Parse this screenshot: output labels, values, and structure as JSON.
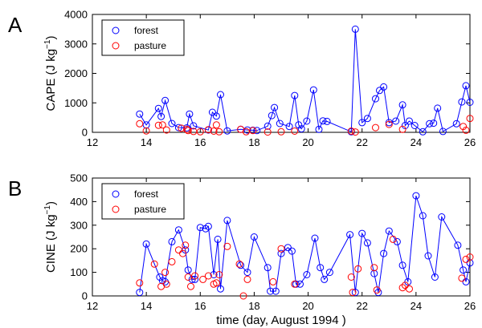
{
  "chart_data": [
    {
      "type": "line",
      "panel_label": "A",
      "ylabel": "CAPE (J kg",
      "ylabel_exp": "−1",
      "ylabel_close": ")",
      "xlim": [
        12,
        26
      ],
      "ylim": [
        0,
        4000
      ],
      "xticks": [
        12,
        14,
        16,
        18,
        20,
        22,
        24,
        26
      ],
      "yticks": [
        0,
        1000,
        2000,
        3000,
        4000
      ],
      "legend_position": "top-left",
      "series": [
        {
          "name": "forest",
          "color": "#0000ff",
          "line": true,
          "x": [
            13.75,
            14.0,
            14.45,
            14.55,
            14.7,
            14.95,
            15.2,
            15.5,
            15.6,
            15.75,
            16.3,
            16.45,
            16.6,
            16.75,
            17.0,
            17.5,
            17.75,
            17.95,
            18.1,
            18.5,
            18.65,
            18.75,
            18.95,
            19.3,
            19.5,
            19.65,
            19.75,
            19.95,
            20.2,
            20.4,
            20.55,
            20.7,
            21.6,
            21.75,
            22.0,
            22.2,
            22.5,
            22.65,
            22.8,
            23.0,
            23.25,
            23.5,
            23.6,
            23.75,
            23.95,
            24.25,
            24.5,
            24.65,
            24.8,
            25.0,
            25.5,
            25.7,
            25.85,
            26.0
          ],
          "y": [
            620,
            250,
            810,
            540,
            1080,
            300,
            160,
            150,
            620,
            220,
            80,
            680,
            550,
            1280,
            50,
            100,
            80,
            70,
            60,
            210,
            570,
            840,
            300,
            200,
            1250,
            250,
            120,
            380,
            1440,
            100,
            390,
            370,
            20,
            3500,
            330,
            470,
            1140,
            1420,
            1540,
            330,
            380,
            930,
            230,
            380,
            230,
            20,
            290,
            310,
            820,
            30,
            290,
            1030,
            1580,
            1020
          ]
        },
        {
          "name": "pasture",
          "color": "#ff0000",
          "line": false,
          "x": [
            13.75,
            14.0,
            14.45,
            14.6,
            14.75,
            15.3,
            15.5,
            15.55,
            15.75,
            16.0,
            16.3,
            16.5,
            16.6,
            16.7,
            17.5,
            17.7,
            17.95,
            18.5,
            19.0,
            19.5,
            21.6,
            21.75,
            22.5,
            23.0,
            23.5,
            25.75,
            25.85,
            26.0
          ],
          "y": [
            290,
            50,
            240,
            250,
            80,
            140,
            100,
            60,
            30,
            20,
            90,
            40,
            250,
            20,
            100,
            20,
            60,
            10,
            20,
            40,
            40,
            10,
            160,
            270,
            100,
            200,
            70,
            470
          ]
        }
      ]
    },
    {
      "type": "line",
      "panel_label": "B",
      "ylabel": "CINE (J kg",
      "ylabel_exp": "−1",
      "ylabel_close": ")",
      "xlabel": "time (day, August 1994 )",
      "xlim": [
        12,
        26
      ],
      "ylim": [
        0,
        500
      ],
      "xticks": [
        12,
        14,
        16,
        18,
        20,
        22,
        24,
        26
      ],
      "yticks": [
        0,
        100,
        200,
        300,
        400,
        500
      ],
      "legend_position": "top-left",
      "series": [
        {
          "name": "forest",
          "color": "#0000ff",
          "line": true,
          "x": [
            13.75,
            14.0,
            14.5,
            14.6,
            14.7,
            14.95,
            15.2,
            15.45,
            15.55,
            15.7,
            15.8,
            16.0,
            16.2,
            16.3,
            16.5,
            16.65,
            16.75,
            17.0,
            17.5,
            17.75,
            18.0,
            18.5,
            18.6,
            18.8,
            19.0,
            19.25,
            19.4,
            19.55,
            19.7,
            19.95,
            20.25,
            20.45,
            20.6,
            20.8,
            21.55,
            21.75,
            22.0,
            22.2,
            22.45,
            22.6,
            22.8,
            23.0,
            23.3,
            23.5,
            23.7,
            24.0,
            24.25,
            24.45,
            24.7,
            24.95,
            25.55,
            25.75,
            25.85,
            26.0
          ],
          "y": [
            15,
            220,
            80,
            65,
            60,
            230,
            280,
            195,
            110,
            70,
            70,
            290,
            285,
            295,
            90,
            240,
            30,
            320,
            130,
            100,
            250,
            120,
            20,
            20,
            180,
            205,
            190,
            50,
            50,
            90,
            245,
            120,
            70,
            100,
            260,
            15,
            265,
            225,
            95,
            15,
            180,
            275,
            230,
            130,
            60,
            425,
            340,
            170,
            80,
            335,
            215,
            110,
            60,
            140
          ]
        },
        {
          "name": "pasture",
          "color": "#ff0000",
          "line": false,
          "x": [
            13.75,
            14.3,
            14.55,
            14.7,
            14.75,
            14.95,
            15.2,
            15.35,
            15.45,
            15.55,
            15.65,
            15.8,
            16.1,
            16.3,
            16.5,
            16.6,
            16.7,
            17.0,
            17.45,
            17.6,
            17.75,
            18.7,
            19.0,
            19.5,
            21.6,
            21.65,
            21.85,
            22.45,
            22.55,
            23.15,
            23.5,
            23.6,
            23.75,
            25.7,
            25.85,
            26.0
          ],
          "y": [
            55,
            135,
            40,
            100,
            50,
            145,
            195,
            180,
            215,
            80,
            40,
            85,
            70,
            85,
            50,
            55,
            90,
            210,
            135,
            0,
            70,
            60,
            200,
            50,
            80,
            15,
            115,
            120,
            25,
            240,
            35,
            45,
            30,
            75,
            155,
            165
          ]
        }
      ]
    }
  ]
}
